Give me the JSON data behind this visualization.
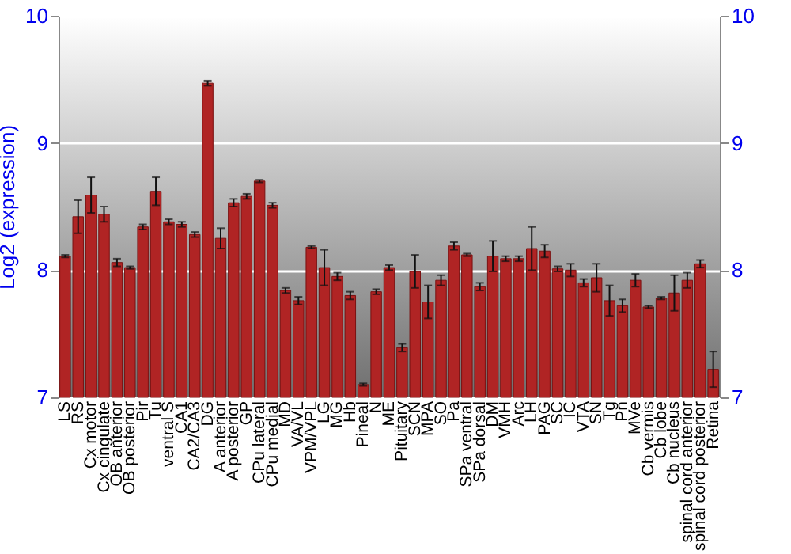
{
  "chart_data": {
    "type": "bar",
    "ylabel": "Log2 (expression)",
    "categories": [
      "LS",
      "RS",
      "Cx motor",
      "Cx cingulate",
      "OB anterior",
      "OB posterior",
      "Pir",
      "Tu",
      "ventral S",
      "CA1",
      "CA2/CA3",
      "DG",
      "A anterior",
      "A posterior",
      "GP",
      "CPu lateral",
      "CPu medial",
      "MD",
      "VA/VL",
      "VPM/VPL",
      "LG",
      "MG",
      "Hb",
      "Pineal",
      "N",
      "ME",
      "Pituitary",
      "SCN",
      "MPA",
      "SO",
      "Pa",
      "SPa ventral",
      "SPa dorsal",
      "DM",
      "VMH",
      "Arc",
      "LH",
      "PAG",
      "SC",
      "IC",
      "VTA",
      "SN",
      "Tg",
      "Pn",
      "MVe",
      "Cb vermis",
      "Cb lobe",
      "Cb nucleus",
      "spinal cord anterior",
      "spinal cord posterior",
      "Retina"
    ],
    "values": [
      8.11,
      8.42,
      8.59,
      8.44,
      8.06,
      8.02,
      8.34,
      8.62,
      8.38,
      8.36,
      8.28,
      9.47,
      8.25,
      8.53,
      8.58,
      8.7,
      8.51,
      7.84,
      7.76,
      8.18,
      8.02,
      7.95,
      7.8,
      7.1,
      7.83,
      8.02,
      7.39,
      7.99,
      7.75,
      7.92,
      8.19,
      8.12,
      7.87,
      8.11,
      8.09,
      8.09,
      8.17,
      8.15,
      8.01,
      8.0,
      7.9,
      7.94,
      7.76,
      7.72,
      7.92,
      7.71,
      7.78,
      7.82,
      7.92,
      8.05,
      7.22
    ],
    "errors": [
      0.01,
      0.13,
      0.14,
      0.06,
      0.03,
      0.01,
      0.02,
      0.11,
      0.02,
      0.02,
      0.02,
      0.02,
      0.08,
      0.03,
      0.02,
      0.01,
      0.02,
      0.02,
      0.03,
      0.01,
      0.14,
      0.03,
      0.03,
      0.01,
      0.02,
      0.02,
      0.03,
      0.13,
      0.13,
      0.04,
      0.03,
      0.01,
      0.03,
      0.12,
      0.02,
      0.02,
      0.17,
      0.05,
      0.02,
      0.05,
      0.03,
      0.11,
      0.12,
      0.05,
      0.05,
      0.01,
      0.01,
      0.14,
      0.06,
      0.03,
      0.14
    ],
    "color": "#b02424",
    "ylim": [
      7,
      10
    ],
    "yticks": [
      7,
      8,
      9,
      10
    ],
    "y2lim": [
      7,
      10
    ],
    "y2ticks": [
      7,
      8,
      9,
      10
    ],
    "grid": true
  }
}
